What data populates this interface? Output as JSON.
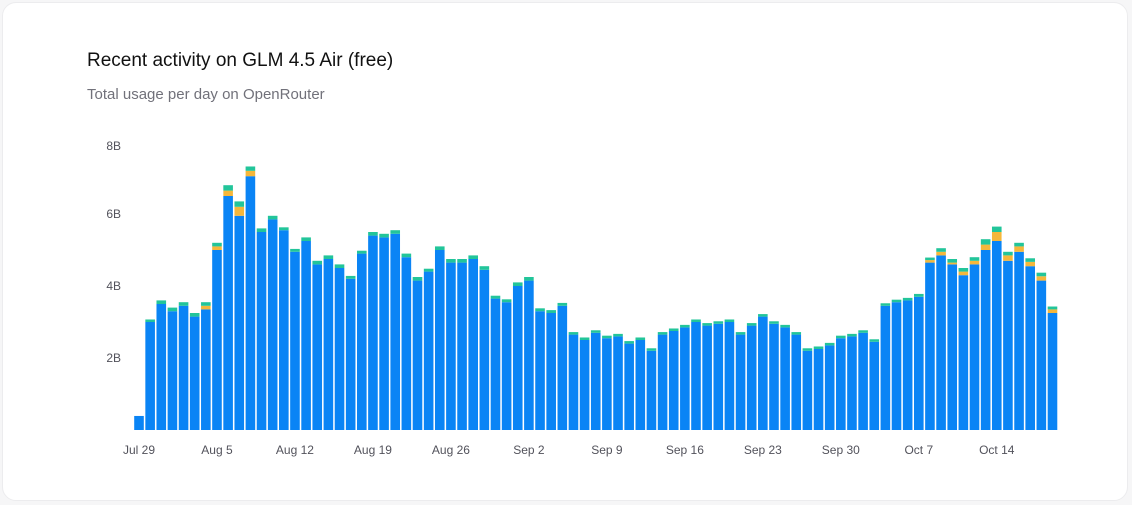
{
  "chart_data": {
    "type": "stacked-bar",
    "title": "Recent activity on GLM 4.5 Air (free)",
    "subtitle": "Total usage per day on OpenRouter",
    "categories": [
      "Jul 29",
      null,
      null,
      null,
      null,
      null,
      null,
      "Aug 5",
      null,
      null,
      null,
      null,
      null,
      null,
      "Aug 12",
      null,
      null,
      null,
      null,
      null,
      null,
      "Aug 19",
      null,
      null,
      null,
      null,
      null,
      null,
      "Aug 26",
      null,
      null,
      null,
      null,
      null,
      null,
      "Sep 2",
      null,
      null,
      null,
      null,
      null,
      null,
      "Sep 9",
      null,
      null,
      null,
      null,
      null,
      null,
      "Sep 16",
      null,
      null,
      null,
      null,
      null,
      null,
      "Sep 23",
      null,
      null,
      null,
      null,
      null,
      null,
      "Sep 30",
      null,
      null,
      null,
      null,
      null,
      null,
      "Oct 7",
      null,
      null,
      null,
      null,
      null,
      null,
      "Oct 14",
      null,
      null,
      null,
      null,
      null
    ],
    "series": [
      {
        "color": "#0a84f5",
        "values": [
          0.39,
          3.0,
          3.5,
          3.3,
          3.45,
          3.15,
          3.35,
          5.0,
          6.5,
          5.95,
          7.05,
          5.5,
          5.85,
          5.55,
          4.95,
          5.25,
          4.6,
          4.75,
          4.5,
          4.2,
          4.9,
          5.4,
          5.35,
          5.45,
          4.8,
          4.15,
          4.4,
          5.0,
          4.65,
          4.65,
          4.75,
          4.45,
          3.65,
          3.55,
          4.0,
          4.15,
          3.3,
          3.25,
          3.45,
          2.65,
          2.5,
          2.7,
          2.55,
          2.6,
          2.4,
          2.5,
          2.2,
          2.65,
          2.75,
          2.85,
          3.0,
          2.9,
          2.95,
          3.0,
          2.65,
          2.9,
          3.15,
          2.95,
          2.85,
          2.65,
          2.2,
          2.25,
          2.35,
          2.55,
          2.6,
          2.7,
          2.45,
          3.45,
          3.55,
          3.6,
          3.7,
          4.65,
          4.85,
          4.6,
          4.3,
          4.6,
          5.0,
          5.25,
          4.7,
          4.95,
          4.55,
          4.15,
          3.25
        ]
      },
      {
        "color": "#f5b73b",
        "values": [
          0,
          0,
          0,
          0,
          0,
          0,
          0.1,
          0.1,
          0.15,
          0.25,
          0.15,
          0,
          0,
          0,
          0,
          0,
          0,
          0,
          0,
          0,
          0,
          0,
          0,
          0,
          0,
          0,
          0,
          0,
          0,
          0,
          0,
          0,
          0,
          0,
          0,
          0,
          0,
          0,
          0,
          0,
          0,
          0,
          0,
          0,
          0,
          0,
          0,
          0,
          0,
          0,
          0,
          0,
          0,
          0,
          0,
          0,
          0,
          0,
          0,
          0,
          0,
          0,
          0,
          0,
          0,
          0,
          0,
          0,
          0,
          0,
          0,
          0.07,
          0.1,
          0.05,
          0.1,
          0.1,
          0.15,
          0.25,
          0.15,
          0.15,
          0.12,
          0.12,
          0.1
        ]
      },
      {
        "color": "#22c59a",
        "values": [
          0,
          0.07,
          0.1,
          0.1,
          0.1,
          0.1,
          0.1,
          0.1,
          0.15,
          0.15,
          0.12,
          0.1,
          0.1,
          0.08,
          0.08,
          0.1,
          0.1,
          0.1,
          0.1,
          0.08,
          0.08,
          0.1,
          0.1,
          0.1,
          0.1,
          0.1,
          0.08,
          0.1,
          0.1,
          0.1,
          0.1,
          0.1,
          0.08,
          0.08,
          0.1,
          0.1,
          0.08,
          0.08,
          0.08,
          0.07,
          0.07,
          0.07,
          0.07,
          0.07,
          0.07,
          0.07,
          0.07,
          0.07,
          0.07,
          0.07,
          0.07,
          0.07,
          0.07,
          0.07,
          0.07,
          0.07,
          0.07,
          0.07,
          0.07,
          0.07,
          0.07,
          0.07,
          0.07,
          0.07,
          0.07,
          0.07,
          0.07,
          0.07,
          0.07,
          0.07,
          0.08,
          0.07,
          0.1,
          0.1,
          0.1,
          0.1,
          0.15,
          0.15,
          0.1,
          0.1,
          0.1,
          0.1,
          0.08
        ]
      }
    ],
    "ylim": [
      0,
      8
    ],
    "yticks": [
      {
        "value": 2,
        "label": "2B"
      },
      {
        "value": 4,
        "label": "4B"
      },
      {
        "value": 6,
        "label": "6B"
      },
      {
        "value": 8,
        "label": "8B"
      }
    ],
    "grid": false
  }
}
